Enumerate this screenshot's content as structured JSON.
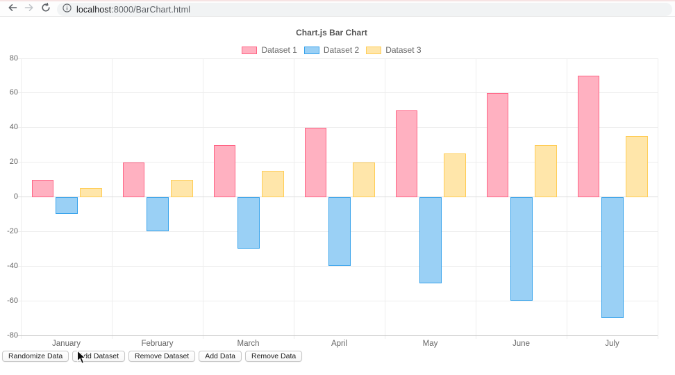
{
  "browser": {
    "url_host": "localhost",
    "url_path": ":8000/BarChart.html",
    "icons": {
      "back": "arrow-left",
      "forward": "arrow-right",
      "reload": "reload-circular-arrow",
      "info": "info-circle"
    }
  },
  "chart_data": {
    "type": "bar",
    "title": "Chart.js Bar Chart",
    "categories": [
      "January",
      "February",
      "March",
      "April",
      "May",
      "June",
      "July"
    ],
    "series": [
      {
        "name": "Dataset 1",
        "values": [
          10,
          20,
          30,
          40,
          50,
          60,
          70
        ],
        "border_color": "#ff6384",
        "fill_color": "#ffb1c1"
      },
      {
        "name": "Dataset 2",
        "values": [
          -10,
          -20,
          -30,
          -40,
          -50,
          -60,
          -70
        ],
        "border_color": "#36a2eb",
        "fill_color": "#9ad0f5"
      },
      {
        "name": "Dataset 3",
        "values": [
          5,
          10,
          15,
          20,
          25,
          30,
          35
        ],
        "border_color": "#ffcd56",
        "fill_color": "#ffe6aa"
      }
    ],
    "ylim": [
      -80,
      80
    ],
    "y_ticks": [
      80,
      60,
      40,
      20,
      0,
      -20,
      -40,
      -60,
      -80
    ],
    "grid": true,
    "legend_position": "top"
  },
  "colors": {
    "grid_line": "#ededed",
    "zero_line": "#dcdcdc",
    "axis_line": "#c5c5c5",
    "tick_text": "#666666",
    "title_text": "#555555"
  },
  "buttons": [
    "Randomize Data",
    "Add Dataset",
    "Remove Dataset",
    "Add Data",
    "Remove Data"
  ]
}
